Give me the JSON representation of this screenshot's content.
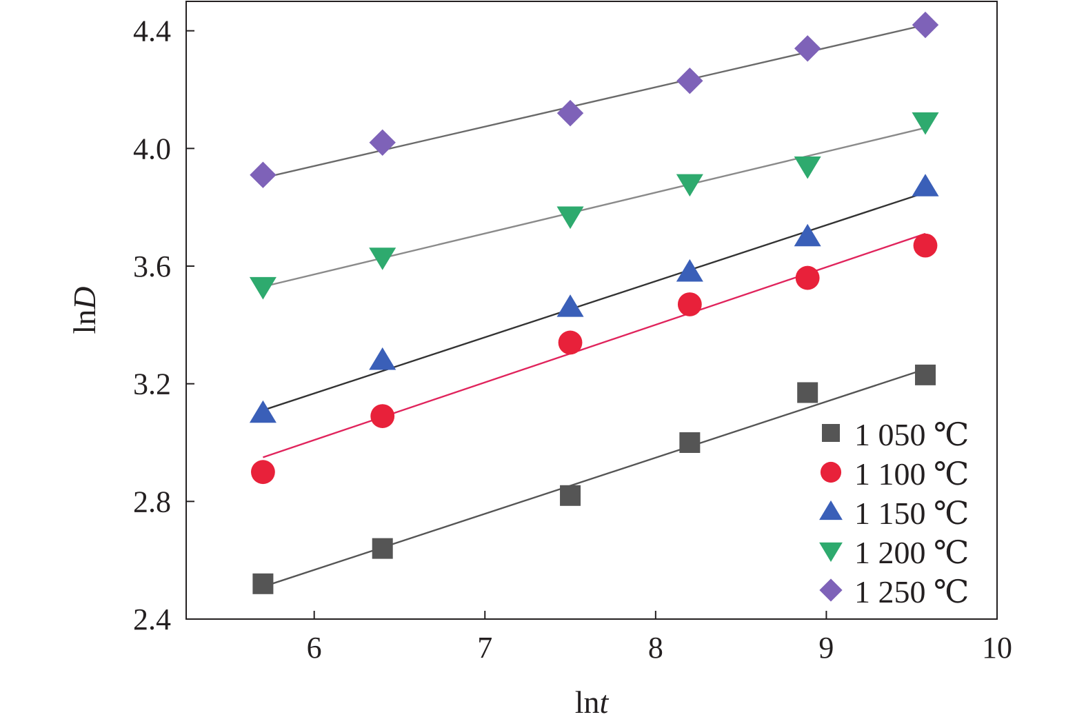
{
  "chart_data": {
    "type": "scatter",
    "title": "",
    "xlabel_prefix": "ln",
    "xlabel_var": "t",
    "ylabel_prefix": "ln",
    "ylabel_var": "D",
    "xlim": [
      5.25,
      10
    ],
    "ylim": [
      2.4,
      4.5
    ],
    "x_ticks": [
      6,
      7,
      8,
      9,
      10
    ],
    "y_ticks": [
      2.4,
      2.8,
      3.2,
      3.6,
      4.0,
      4.4
    ],
    "x_tick_labels": [
      "6",
      "7",
      "8",
      "9",
      "10"
    ],
    "y_tick_labels": [
      "2.4",
      "2.8",
      "3.2",
      "3.6",
      "4.0",
      "4.4"
    ],
    "grid": false,
    "legend_position": "bottom-right",
    "x": [
      5.7,
      6.4,
      7.5,
      8.2,
      8.89,
      9.58
    ],
    "series": [
      {
        "name": "1 050 ℃",
        "marker": "square",
        "color": "#555555",
        "line_color": "#555555",
        "values": [
          2.52,
          2.64,
          2.82,
          3.0,
          3.17,
          3.23
        ],
        "fit": [
          [
            5.7,
            2.51
          ],
          [
            9.58,
            3.25
          ]
        ]
      },
      {
        "name": "1 100 ℃",
        "marker": "circle",
        "color": "#e8213a",
        "line_color": "#e0245c",
        "values": [
          2.9,
          3.09,
          3.34,
          3.47,
          3.56,
          3.67
        ],
        "fit": [
          [
            5.7,
            2.95
          ],
          [
            9.58,
            3.71
          ]
        ]
      },
      {
        "name": "1 150 ℃",
        "marker": "triangle-up",
        "color": "#3a5fb8",
        "line_color": "#333333",
        "values": [
          3.1,
          3.28,
          3.46,
          3.58,
          3.7,
          3.87
        ],
        "fit": [
          [
            5.7,
            3.11
          ],
          [
            9.58,
            3.85
          ]
        ]
      },
      {
        "name": "1 200 ℃",
        "marker": "triangle-down",
        "color": "#2eaa6e",
        "line_color": "#8a8a8a",
        "values": [
          3.53,
          3.63,
          3.77,
          3.88,
          3.94,
          4.09
        ],
        "fit": [
          [
            5.7,
            3.53
          ],
          [
            9.58,
            4.07
          ]
        ]
      },
      {
        "name": "1 250 ℃",
        "marker": "diamond",
        "color": "#7e62b8",
        "line_color": "#6a6a6a",
        "values": [
          3.91,
          4.02,
          4.12,
          4.23,
          4.34,
          4.42
        ],
        "fit": [
          [
            5.7,
            3.9
          ],
          [
            9.58,
            4.42
          ]
        ]
      }
    ]
  }
}
